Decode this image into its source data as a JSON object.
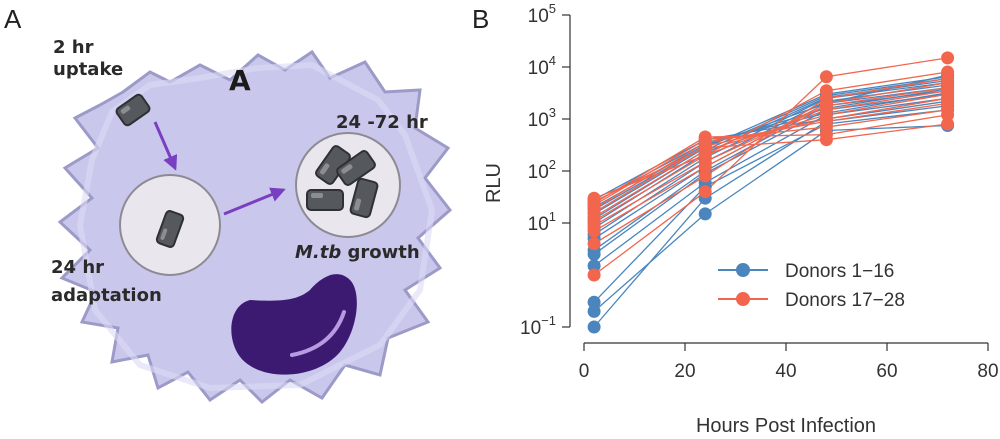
{
  "panels": {
    "a_letter": "A",
    "b_letter": "B"
  },
  "diagram": {
    "cell_tag": "A",
    "uptake_line1": "2 hr",
    "uptake_line2": "uptake",
    "adapt_line1": "24 hr",
    "adapt_line2": "adaptation",
    "growth_time": "24 -72 hr",
    "growth_italic": "M.tb",
    "growth_word": " growth",
    "colors": {
      "cell_fill": "#c9c8ec",
      "cell_edge": "#9c9bc8",
      "vacuole_fill": "#e9e6ee",
      "bacterium": "#55585c",
      "arrow": "#7a3fc0",
      "nucleus": "#3d1a72"
    }
  },
  "chart_data": {
    "type": "line",
    "xlabel": "Hours Post Infection",
    "ylabel": "RLU",
    "xlim": [
      0,
      80
    ],
    "ylim_log10": [
      -1,
      5
    ],
    "yscale": "log",
    "x_ticks": [
      "0",
      "20",
      "40",
      "60",
      "80"
    ],
    "y_ticks": [
      {
        "base": "10",
        "exp": "−1"
      },
      {
        "base": "10",
        "exp": "1"
      },
      {
        "base": "10",
        "exp": "2"
      },
      {
        "base": "10",
        "exp": "3"
      },
      {
        "base": "10",
        "exp": "4"
      },
      {
        "base": "10",
        "exp": "5"
      }
    ],
    "x": [
      2,
      24,
      48,
      72
    ],
    "legend_position": "bottom-right",
    "series": [
      {
        "name": "Donors 1−16",
        "color": "#4a86bd",
        "donors": [
          [
            0.1,
            30,
            900,
            1800
          ],
          [
            0.2,
            15,
            600,
            750
          ],
          [
            0.3,
            50,
            800,
            1500
          ],
          [
            1.5,
            60,
            1200,
            2500
          ],
          [
            2.5,
            90,
            1500,
            3000
          ],
          [
            3.0,
            100,
            1800,
            3500
          ],
          [
            5.0,
            120,
            2000,
            4000
          ],
          [
            6.0,
            150,
            2200,
            4500
          ],
          [
            8.0,
            180,
            2500,
            5000
          ],
          [
            10.0,
            220,
            2600,
            5500
          ],
          [
            12.0,
            250,
            2800,
            6000
          ],
          [
            15.0,
            280,
            3000,
            6500
          ],
          [
            18.0,
            300,
            2000,
            7000
          ],
          [
            20.0,
            320,
            1600,
            3800
          ],
          [
            25.0,
            350,
            1300,
            3200
          ],
          [
            28.0,
            400,
            1000,
            2200
          ]
        ]
      },
      {
        "name": "Donors 17−28",
        "color": "#f2664e",
        "donors": [
          [
            1.0,
            40,
            6500,
            15000
          ],
          [
            4.0,
            80,
            2500,
            6000
          ],
          [
            7.0,
            120,
            2000,
            5000
          ],
          [
            9.0,
            150,
            1800,
            4000
          ],
          [
            11.0,
            200,
            1500,
            3500
          ],
          [
            13.0,
            250,
            1200,
            3000
          ],
          [
            16.0,
            300,
            1000,
            2500
          ],
          [
            19.0,
            350,
            900,
            2000
          ],
          [
            22.0,
            400,
            700,
            1500
          ],
          [
            24.0,
            450,
            500,
            1200
          ],
          [
            26.0,
            280,
            400,
            800
          ],
          [
            30.0,
            200,
            3500,
            8000
          ]
        ]
      }
    ]
  }
}
